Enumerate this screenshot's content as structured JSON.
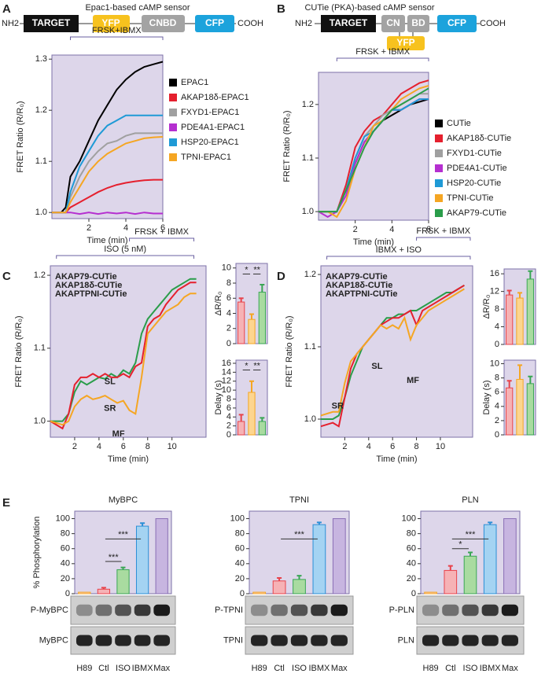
{
  "panels": [
    "A",
    "B",
    "C",
    "D",
    "E"
  ],
  "diagrams": [
    {
      "title": "Epac1-based cAMP sensor",
      "parts": [
        "NH2",
        "TARGET",
        "YFP",
        "CNBD",
        "CFP",
        "COOH"
      ]
    },
    {
      "title": "CUTie (PKA)-based cAMP sensor",
      "parts": [
        "NH2",
        "TARGET",
        "CN",
        "BD",
        "YFP",
        "CFP",
        "COOH"
      ]
    }
  ],
  "chart_data": [
    {
      "type": "line",
      "xlabel": "Time (min)",
      "ylabel": "FRET Ratio (R/R₀)",
      "xlim": [
        0,
        6
      ],
      "xticks": [
        2,
        4,
        6
      ],
      "ylim": [
        0.988,
        1.308
      ],
      "yticks": [
        {
          "value": 1,
          "label": "1.0"
        },
        1.1,
        1.2,
        1.3
      ],
      "legend": "right",
      "brackets": [
        {
          "text": "FRSK+IBMX",
          "x": [
            1,
            6
          ]
        }
      ],
      "x": [
        0,
        0.5,
        0.75,
        1,
        1.5,
        2,
        2.5,
        3,
        3.5,
        4,
        4.5,
        5,
        5.5,
        6
      ],
      "series": [
        {
          "name": "EPAC1",
          "color": "#000000",
          "values": [
            1.0,
            1.0,
            1.01,
            1.07,
            1.1,
            1.14,
            1.18,
            1.21,
            1.24,
            1.26,
            1.275,
            1.285,
            1.29,
            1.295
          ]
        },
        {
          "name": "AKAP18δ-EPAC1",
          "color": "#e5202e",
          "values": [
            1.0,
            1.0,
            1.0,
            1.01,
            1.02,
            1.03,
            1.04,
            1.048,
            1.054,
            1.058,
            1.061,
            1.063,
            1.064,
            1.064
          ]
        },
        {
          "name": "FXYD1-EPAC1",
          "color": "#a0a0a0",
          "values": [
            1.0,
            1.0,
            1.0,
            1.03,
            1.07,
            1.1,
            1.12,
            1.135,
            1.14,
            1.15,
            1.155,
            1.155,
            1.155,
            1.155
          ]
        },
        {
          "name": "PDE4A1-EPAC1",
          "color": "#b52fd0",
          "values": [
            1.0,
            1.0,
            1.0,
            1.0,
            0.997,
            1.0,
            0.997,
            1.0,
            0.998,
            1.0,
            0.997,
            1.0,
            0.998,
            0.998
          ]
        },
        {
          "name": "HSP20-EPAC1",
          "color": "#1f9ad6",
          "values": [
            1.0,
            1.0,
            1.0,
            1.04,
            1.09,
            1.12,
            1.15,
            1.17,
            1.18,
            1.19,
            1.19,
            1.19,
            1.19,
            1.19
          ]
        },
        {
          "name": "TPNI-EPAC1",
          "color": "#f5a623",
          "values": [
            1.0,
            1.0,
            1.0,
            1.02,
            1.05,
            1.08,
            1.1,
            1.115,
            1.125,
            1.135,
            1.14,
            1.145,
            1.147,
            1.148
          ]
        }
      ]
    },
    {
      "type": "line",
      "xlabel": "Time (min)",
      "ylabel": "FRET Ratio (R/R₀)",
      "xlim": [
        0,
        6
      ],
      "xticks": [
        2,
        4,
        6
      ],
      "ylim": [
        0.984,
        1.26
      ],
      "yticks": [
        {
          "value": 1,
          "label": "1.0"
        },
        1.1,
        1.2
      ],
      "legend": "right",
      "brackets": [
        {
          "text": "FRSK + IBMX",
          "x": [
            1,
            6
          ]
        }
      ],
      "x": [
        0,
        0.5,
        1,
        1.5,
        2,
        2.5,
        3,
        3.5,
        4,
        4.5,
        5,
        5.5,
        6
      ],
      "series": [
        {
          "name": "CUTie",
          "color": "#000000",
          "values": [
            1.0,
            1.0,
            1.0,
            1.04,
            1.09,
            1.13,
            1.15,
            1.17,
            1.18,
            1.19,
            1.2,
            1.205,
            1.21
          ]
        },
        {
          "name": "AKAP18δ-CUTie",
          "color": "#e5202e",
          "values": [
            1.0,
            1.0,
            1.0,
            1.05,
            1.12,
            1.15,
            1.17,
            1.18,
            1.2,
            1.22,
            1.23,
            1.24,
            1.245
          ]
        },
        {
          "name": "FXYD1-CUTie",
          "color": "#a0a0a0",
          "values": [
            1.0,
            1.0,
            1.0,
            1.04,
            1.1,
            1.14,
            1.16,
            1.18,
            1.19,
            1.2,
            1.21,
            1.22,
            1.22
          ]
        },
        {
          "name": "PDE4A1-CUTie",
          "color": "#b52fd0",
          "values": [
            1.0,
            0.99,
            1.0,
            1.03,
            1.09,
            1.13,
            1.15,
            1.17,
            1.19,
            1.19,
            1.2,
            1.21,
            1.21
          ]
        },
        {
          "name": "HSP20-CUTie",
          "color": "#1f9ad6",
          "values": [
            1.0,
            1.0,
            1.0,
            1.04,
            1.1,
            1.14,
            1.15,
            1.17,
            1.19,
            1.19,
            1.2,
            1.21,
            1.21
          ]
        },
        {
          "name": "TPNI-CUTie",
          "color": "#f5a623",
          "values": [
            1.0,
            1.0,
            0.99,
            1.02,
            1.08,
            1.12,
            1.16,
            1.17,
            1.19,
            1.21,
            1.22,
            1.23,
            1.235
          ]
        },
        {
          "name": "AKAP79-CUTie",
          "color": "#2a9d4a",
          "values": [
            1.0,
            1.0,
            1.0,
            1.04,
            1.08,
            1.12,
            1.15,
            1.17,
            1.19,
            1.2,
            1.21,
            1.22,
            1.23
          ]
        }
      ]
    },
    {
      "type": "line",
      "xlabel": "Time (min)",
      "ylabel": "FRET Ratio (R/R₀)",
      "xlim": [
        0,
        12.8
      ],
      "xticks": [
        2,
        4,
        6,
        8,
        10
      ],
      "ylim": [
        0.978,
        1.213
      ],
      "yticks": [
        {
          "value": 1,
          "label": "1.0"
        },
        1.1,
        1.2
      ],
      "legend": "top-left",
      "brackets": [
        {
          "text": "ISO (5 nM)",
          "x": [
            0.5,
            11.8
          ]
        },
        {
          "text": "FRSK + IBMX",
          "x": [
            6.5,
            11.8
          ]
        }
      ],
      "labels": [
        {
          "text": "SL",
          "x": 4.9,
          "y": 1.054,
          "color": "#2a9d4a"
        },
        {
          "text": "SR",
          "x": 4.9,
          "y": 1.017,
          "color": "#e5202e"
        },
        {
          "text": "MF",
          "x": 5.6,
          "y": 0.982,
          "color": "#f5a623"
        }
      ],
      "x": [
        0,
        1,
        1.5,
        2,
        2.5,
        3,
        3.5,
        4,
        4.5,
        5,
        5.5,
        6,
        6.5,
        7,
        7.5,
        8,
        8.5,
        9,
        9.5,
        10,
        10.5,
        11,
        11.5,
        12
      ],
      "series": [
        {
          "name": "AKAP79-CUTie",
          "color": "#2a9d4a",
          "values": [
            1.0,
            1.0,
            1.01,
            1.04,
            1.055,
            1.05,
            1.055,
            1.06,
            1.058,
            1.065,
            1.06,
            1.07,
            1.065,
            1.08,
            1.12,
            1.14,
            1.15,
            1.16,
            1.17,
            1.18,
            1.185,
            1.19,
            1.195,
            1.195
          ]
        },
        {
          "name": "AKAP18δ-CUTie",
          "color": "#e5202e",
          "values": [
            1.0,
            0.99,
            1.01,
            1.05,
            1.06,
            1.06,
            1.065,
            1.06,
            1.065,
            1.06,
            1.06,
            1.065,
            1.06,
            1.075,
            1.08,
            1.13,
            1.14,
            1.145,
            1.16,
            1.17,
            1.18,
            1.185,
            1.19,
            1.19
          ]
        },
        {
          "name": "AKAPTPNI-CUTie",
          "color": "#f5a623",
          "values": [
            1.0,
            0.995,
            1.0,
            1.02,
            1.03,
            1.035,
            1.03,
            1.032,
            1.035,
            1.03,
            1.025,
            1.028,
            1.015,
            1.01,
            1.06,
            1.12,
            1.13,
            1.14,
            1.15,
            1.155,
            1.16,
            1.17,
            1.175,
            1.175
          ]
        }
      ]
    },
    {
      "type": "bar",
      "ylabel": "ΔR/R₀",
      "ylim": [
        0,
        10.6
      ],
      "yticks": [
        0,
        2,
        4,
        6,
        8,
        10
      ],
      "categories": [
        null,
        null,
        null
      ],
      "values": [
        5.5,
        3.2,
        6.8
      ],
      "errors": [
        0.5,
        0.7,
        1.0
      ],
      "colors": [
        "#f6b2b5",
        "#fdd58f",
        "#a9dba0"
      ],
      "edge_colors": [
        "#e8434b",
        "#f5a623",
        "#3aa655"
      ],
      "significance": [
        {
          "text": "*",
          "bars": [
            0,
            1
          ],
          "y": 9.2
        },
        {
          "text": "**",
          "bars": [
            1,
            2
          ],
          "y": 9.2
        }
      ]
    },
    {
      "type": "bar",
      "ylabel": "Delay (s)",
      "ylim": [
        0,
        16.7
      ],
      "yticks": [
        0,
        2,
        4,
        6,
        8,
        10,
        12,
        14,
        16
      ],
      "categories": [
        null,
        null,
        null
      ],
      "values": [
        3,
        9.5,
        3
      ],
      "errors": [
        1.5,
        2.5,
        0.8
      ],
      "colors": [
        "#f6b2b5",
        "#fdd58f",
        "#a9dba0"
      ],
      "edge_colors": [
        "#e8434b",
        "#f5a623",
        "#3aa655"
      ],
      "significance": [
        {
          "text": "*",
          "bars": [
            0,
            1
          ],
          "y": 14.5
        },
        {
          "text": "**",
          "bars": [
            1,
            2
          ],
          "y": 14.5
        }
      ]
    },
    {
      "type": "line",
      "xlabel": "Time (min)",
      "ylabel": "FRET Ratio (R/R₀)",
      "xlim": [
        0,
        12.7
      ],
      "xticks": [
        2,
        4,
        6,
        8,
        10
      ],
      "ylim": [
        0.975,
        1.212
      ],
      "yticks": [
        {
          "value": 1,
          "label": "1.0"
        },
        1.1,
        1.2
      ],
      "legend": "top-left",
      "brackets": [
        {
          "text": "IBMX + ISO",
          "x": [
            0.5,
            12.5
          ]
        },
        {
          "text": "FRSK + IBMX",
          "x": [
            8,
            12.5
          ]
        }
      ],
      "labels": [
        {
          "text": "SL",
          "x": 4.7,
          "y": 1.073,
          "color": "#2a9d4a"
        },
        {
          "text": "MF",
          "x": 7.7,
          "y": 1.053,
          "color": "#f5a623"
        },
        {
          "text": "SR",
          "x": 1.4,
          "y": 1.018,
          "color": "#e5202e"
        }
      ],
      "x": [
        0,
        1,
        1.5,
        2,
        2.5,
        3,
        3.5,
        4,
        4.5,
        5,
        5.5,
        6,
        6.5,
        7,
        7.5,
        8,
        8.5,
        9,
        9.5,
        10,
        10.5,
        11,
        11.5,
        12
      ],
      "series": [
        {
          "name": "AKAP79-CUTie",
          "color": "#2a9d4a",
          "values": [
            1.0,
            1.0,
            1.005,
            1.03,
            1.06,
            1.08,
            1.1,
            1.11,
            1.12,
            1.13,
            1.14,
            1.14,
            1.145,
            1.145,
            1.15,
            1.15,
            1.155,
            1.16,
            1.165,
            1.17,
            1.175,
            1.175,
            1.18,
            1.185
          ]
        },
        {
          "name": "AKAP18δ-CUTie",
          "color": "#e5202e",
          "values": [
            0.99,
            0.995,
            0.99,
            1.03,
            1.07,
            1.09,
            1.1,
            1.11,
            1.12,
            1.13,
            1.135,
            1.14,
            1.14,
            1.145,
            1.15,
            1.13,
            1.15,
            1.155,
            1.16,
            1.165,
            1.17,
            1.175,
            1.18,
            1.185
          ]
        },
        {
          "name": "AKAPTPNI-CUTie",
          "color": "#f5a623",
          "values": [
            1.005,
            1.01,
            1.01,
            1.05,
            1.08,
            1.09,
            1.1,
            1.11,
            1.12,
            1.13,
            1.125,
            1.13,
            1.125,
            1.14,
            1.11,
            1.13,
            1.14,
            1.15,
            1.155,
            1.16,
            1.165,
            1.17,
            1.175,
            1.18
          ]
        }
      ]
    },
    {
      "type": "bar",
      "ylabel": "ΔR/R₀",
      "ylim": [
        0,
        17.1
      ],
      "yticks": [
        0,
        4,
        8,
        12,
        16
      ],
      "categories": [
        null,
        null,
        null
      ],
      "values": [
        11.2,
        10.5,
        14.8
      ],
      "errors": [
        1.0,
        1.2,
        1.8
      ],
      "colors": [
        "#f6b2b5",
        "#fdd58f",
        "#a9dba0"
      ],
      "edge_colors": [
        "#e8434b",
        "#f5a623",
        "#3aa655"
      ]
    },
    {
      "type": "bar",
      "ylabel": "Delay (s)",
      "ylim": [
        0,
        10.5
      ],
      "yticks": [
        0,
        2,
        4,
        6,
        8,
        10
      ],
      "categories": [
        null,
        null,
        null
      ],
      "values": [
        6.6,
        7.8,
        7.2
      ],
      "errors": [
        1.0,
        2.0,
        1.0
      ],
      "colors": [
        "#f6b2b5",
        "#fdd58f",
        "#a9dba0"
      ],
      "edge_colors": [
        "#e8434b",
        "#f5a623",
        "#3aa655"
      ]
    },
    {
      "type": "bar",
      "title": "MyBPC",
      "ylabel": "% Phosphorylation",
      "ylim": [
        0,
        110
      ],
      "yticks": [
        0,
        20,
        40,
        60,
        80,
        100
      ],
      "categories": [
        "H89",
        "Ctl",
        "ISO",
        "IBMX",
        "Max"
      ],
      "values": [
        2,
        6,
        32,
        90,
        100
      ],
      "errors": [
        null,
        2,
        3,
        4,
        null
      ],
      "colors": [
        "#fbc8a8",
        "#f6b2b5",
        "#a9dba0",
        "#a4d3f2",
        "#c7b5e0"
      ],
      "edge_colors": [
        "#f5a623",
        "#e8434b",
        "#3aa655",
        "#2b8fd6",
        "#8a6fb5"
      ],
      "significance": [
        {
          "text": "***",
          "bars": [
            1,
            2
          ],
          "y": 43
        },
        {
          "text": "***",
          "bars": [
            1,
            3
          ],
          "y": 73
        }
      ],
      "blot_labels": [
        "P-MyBPC",
        "MyBPC"
      ]
    },
    {
      "type": "bar",
      "title": "TPNI",
      "ylim": [
        0,
        110
      ],
      "yticks": [
        0,
        20,
        40,
        60,
        80,
        100
      ],
      "categories": [
        "H89",
        "Ctl",
        "ISO",
        "IBMX",
        "Max"
      ],
      "values": [
        2,
        17,
        19,
        92,
        100
      ],
      "errors": [
        null,
        4,
        5,
        3,
        null
      ],
      "colors": [
        "#fbc8a8",
        "#f6b2b5",
        "#a9dba0",
        "#a4d3f2",
        "#c7b5e0"
      ],
      "edge_colors": [
        "#f5a623",
        "#e8434b",
        "#3aa655",
        "#2b8fd6",
        "#8a6fb5"
      ],
      "significance": [
        {
          "text": "***",
          "bars": [
            1,
            3
          ],
          "y": 73
        }
      ],
      "blot_labels": [
        "P-TPNI",
        "TPNI"
      ]
    },
    {
      "type": "bar",
      "title": "PLN",
      "ylim": [
        0,
        110
      ],
      "yticks": [
        0,
        20,
        40,
        60,
        80,
        100
      ],
      "categories": [
        "H89",
        "Ctl",
        "ISO",
        "IBMX",
        "Max"
      ],
      "values": [
        2,
        31,
        50,
        92,
        100
      ],
      "errors": [
        null,
        6,
        5,
        3,
        null
      ],
      "colors": [
        "#fbc8a8",
        "#f6b2b5",
        "#a9dba0",
        "#a4d3f2",
        "#c7b5e0"
      ],
      "edge_colors": [
        "#f5a623",
        "#e8434b",
        "#3aa655",
        "#2b8fd6",
        "#8a6fb5"
      ],
      "significance": [
        {
          "text": "*",
          "bars": [
            1,
            2
          ],
          "y": 60
        },
        {
          "text": "***",
          "bars": [
            1,
            3
          ],
          "y": 73
        }
      ],
      "blot_labels": [
        "P-PLN",
        "PLN"
      ]
    }
  ]
}
